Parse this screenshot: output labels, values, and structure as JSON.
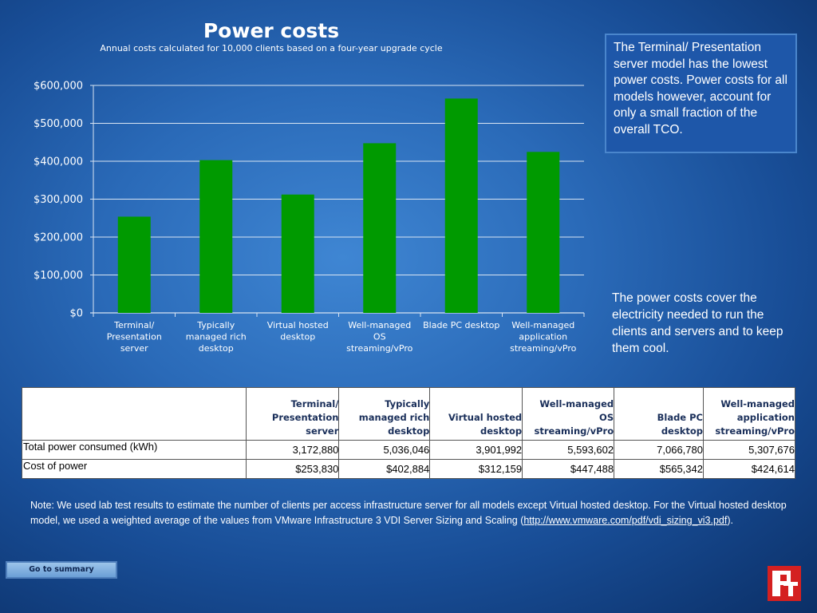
{
  "header": {
    "title": "Power costs",
    "subtitle": "Annual costs calculated for 10,000 clients based on a four-year upgrade cycle"
  },
  "chart_data": {
    "type": "bar",
    "categories": [
      "Terminal/ Presentation server",
      "Typically managed rich desktop",
      "Virtual hosted desktop",
      "Well-managed OS streaming/vPro",
      "Blade PC desktop",
      "Well-managed application streaming/vPro"
    ],
    "category_lines": [
      [
        "Terminal/",
        "Presentation",
        "server"
      ],
      [
        "Typically",
        "managed rich",
        "desktop"
      ],
      [
        "Virtual hosted",
        "desktop"
      ],
      [
        "Well-managed",
        "OS",
        "streaming/vPro"
      ],
      [
        "Blade PC desktop"
      ],
      [
        "Well-managed",
        "application",
        "streaming/vPro"
      ]
    ],
    "values": [
      253830,
      402884,
      312159,
      447488,
      565342,
      424614
    ],
    "ylim": [
      0,
      600000
    ],
    "yticks": [
      0,
      100000,
      200000,
      300000,
      400000,
      500000,
      600000
    ],
    "ytick_labels": [
      "$0",
      "$100,000",
      "$200,000",
      "$300,000",
      "$400,000",
      "$500,000",
      "$600,000"
    ],
    "bar_color": "#009a00",
    "grid": true
  },
  "callouts": {
    "box": "The Terminal/ Presentation server model has the lowest power costs. Power costs for all models however, account for only a small fraction of the overall TCO.",
    "text": "The power costs cover the electricity needed to run the clients and servers and to keep them cool."
  },
  "table": {
    "headers": [
      "",
      "Terminal/ Presentation server",
      "Typically  managed rich desktop",
      "Virtual hosted desktop",
      "Well-managed OS streaming/vPro",
      "Blade PC desktop",
      "Well-managed application streaming/vPro"
    ],
    "rows": [
      {
        "label": "Total power consumed (kWh)",
        "cells": [
          "3,172,880",
          "5,036,046",
          "3,901,992",
          "5,593,602",
          "7,066,780",
          "5,307,676"
        ]
      },
      {
        "label": "Cost of power",
        "cells": [
          "$253,830",
          "$402,884",
          "$312,159",
          "$447,488",
          "$565,342",
          "$424,614"
        ]
      }
    ]
  },
  "note": {
    "prefix": "Note: We used lab test results to estimate the number of clients per access infrastructure server for all models except Virtual hosted desktop. For the Virtual hosted desktop model, we used a weighted average of the values from VMware Infrastructure 3 VDI Server Sizing and Scaling (",
    "link": "http://www.vmware.com/pdf/vdi_sizing_vi3.pdf",
    "suffix": ")."
  },
  "buttons": {
    "summary": "Go to summary"
  },
  "logo": {
    "icon": "pt-logo-icon",
    "color": "#d42020"
  }
}
